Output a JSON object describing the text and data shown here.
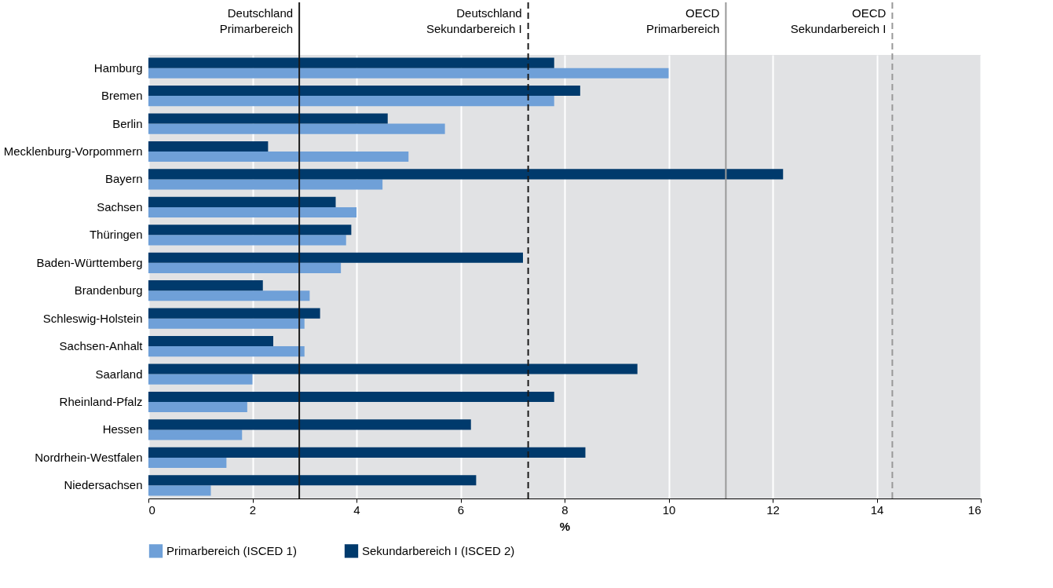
{
  "chart_data": {
    "type": "bar",
    "orientation": "horizontal",
    "xlabel": "%",
    "categories": [
      "Hamburg",
      "Bremen",
      "Berlin",
      "Mecklenburg-Vorpommern",
      "Bayern",
      "Sachsen",
      "Thüringen",
      "Baden-Württemberg",
      "Brandenburg",
      "Schleswig-Holstein",
      "Sachsen-Anhalt",
      "Saarland",
      "Rheinland-Pfalz",
      "Hessen",
      "Nordrhein-Westfalen",
      "Niedersachsen"
    ],
    "series": [
      {
        "name": "Primarbereich (ISCED 1)",
        "color": "#6fa0d8",
        "values": [
          10.0,
          7.8,
          5.7,
          5.0,
          4.5,
          4.0,
          3.8,
          3.7,
          3.1,
          3.0,
          3.0,
          2.0,
          1.9,
          1.8,
          1.5,
          1.2
        ]
      },
      {
        "name": "Sekundarbereich I (ISCED 2)",
        "color": "#003a6c",
        "values": [
          7.8,
          8.3,
          4.6,
          2.3,
          12.2,
          3.6,
          3.9,
          7.2,
          2.2,
          3.3,
          2.4,
          9.4,
          7.8,
          6.2,
          8.4,
          6.3
        ]
      }
    ],
    "xlim": [
      0,
      16
    ],
    "xticks": [
      0,
      2,
      4,
      6,
      8,
      10,
      12,
      14,
      16
    ],
    "grid": true,
    "legend": "bottom",
    "ref_lines": [
      {
        "axis": "x",
        "value": 2.9,
        "label": "Deutschland\nPrimarbereich",
        "color": "#1a1a1a",
        "line_style": "solid"
      },
      {
        "axis": "x",
        "value": 7.3,
        "label": "Deutschland\nSekundarbereich I",
        "color": "#1a1a1a",
        "line_style": "dashed"
      },
      {
        "axis": "x",
        "value": 11.1,
        "label": "OECD\nPrimarbereich",
        "color": "#999999",
        "line_style": "solid"
      },
      {
        "axis": "x",
        "value": 14.3,
        "label": "OECD\nSekundarbereich I",
        "color": "#999999",
        "line_style": "dashed"
      }
    ]
  }
}
